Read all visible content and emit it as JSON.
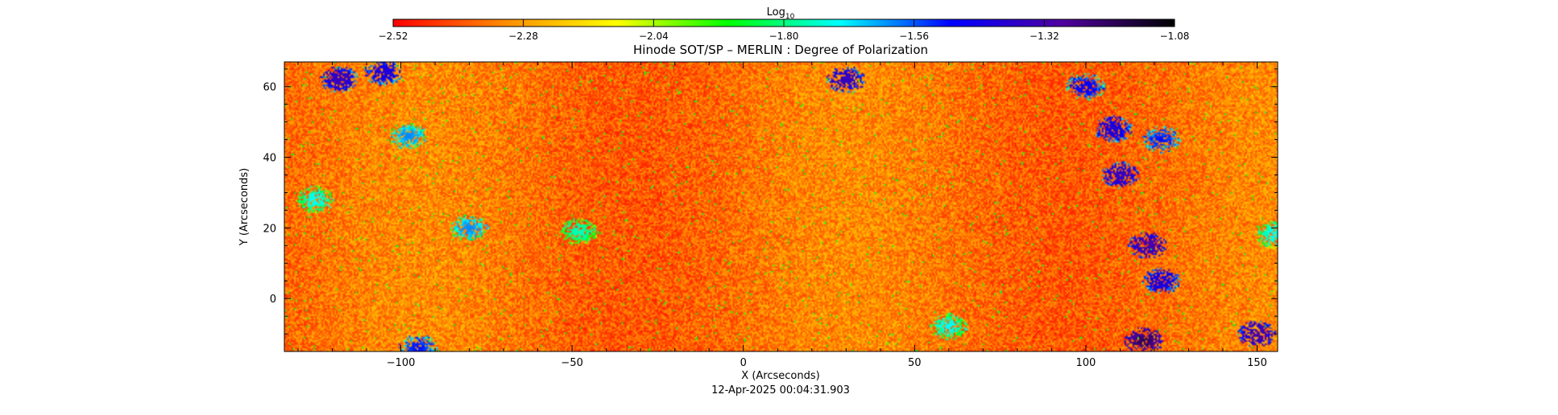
{
  "chart_data": {
    "type": "heatmap",
    "title": "Hinode SOT/SP – MERLIN : Degree of Polarization",
    "xlabel": "X (Arcseconds)",
    "ylabel": "Y (Arcseconds)",
    "timestamp": "12-Apr-2025 00:04:31.903",
    "xlim": [
      -134,
      156
    ],
    "ylim": [
      -15,
      67
    ],
    "x_ticks": [
      -100,
      -50,
      0,
      50,
      100,
      150
    ],
    "x_tick_labels": [
      "−100",
      "−50",
      "0",
      "50",
      "100",
      "150"
    ],
    "y_ticks": [
      0,
      20,
      40,
      60
    ],
    "y_tick_labels": [
      "0",
      "20",
      "40",
      "60"
    ],
    "colorbar": {
      "label_base": "Log",
      "label_sub": "10",
      "range": [
        -2.52,
        -1.08
      ],
      "ticks": [
        -2.52,
        -2.28,
        -2.04,
        -1.8,
        -1.56,
        -1.32,
        -1.08
      ],
      "tick_labels": [
        "−2.52",
        "−2.28",
        "−2.04",
        "−1.80",
        "−1.56",
        "−1.32",
        "−1.08"
      ],
      "colors": [
        "#ff0000",
        "#ff8c00",
        "#ffff00",
        "#00ff00",
        "#00ffff",
        "#0000ff",
        "#5000a0",
        "#000000"
      ]
    },
    "field": {
      "background_value_range": [
        -2.45,
        -2.25
      ],
      "active_regions": [
        {
          "x": -118,
          "y": 62,
          "value": -1.35
        },
        {
          "x": -105,
          "y": 64,
          "value": -1.4
        },
        {
          "x": -98,
          "y": 46,
          "value": -1.6
        },
        {
          "x": -125,
          "y": 28,
          "value": -1.7
        },
        {
          "x": -80,
          "y": 20,
          "value": -1.6
        },
        {
          "x": -48,
          "y": 19,
          "value": -1.75
        },
        {
          "x": 30,
          "y": 62,
          "value": -1.35
        },
        {
          "x": 100,
          "y": 60,
          "value": -1.45
        },
        {
          "x": 108,
          "y": 48,
          "value": -1.4
        },
        {
          "x": 110,
          "y": 35,
          "value": -1.35
        },
        {
          "x": 122,
          "y": 45,
          "value": -1.5
        },
        {
          "x": 118,
          "y": 15,
          "value": -1.3
        },
        {
          "x": 122,
          "y": 5,
          "value": -1.4
        },
        {
          "x": 117,
          "y": -12,
          "value": -1.2
        },
        {
          "x": 150,
          "y": -10,
          "value": -1.3
        },
        {
          "x": 155,
          "y": 18,
          "value": -1.7
        },
        {
          "x": 60,
          "y": -8,
          "value": -1.7
        },
        {
          "x": -95,
          "y": -14,
          "value": -1.5
        }
      ]
    }
  }
}
